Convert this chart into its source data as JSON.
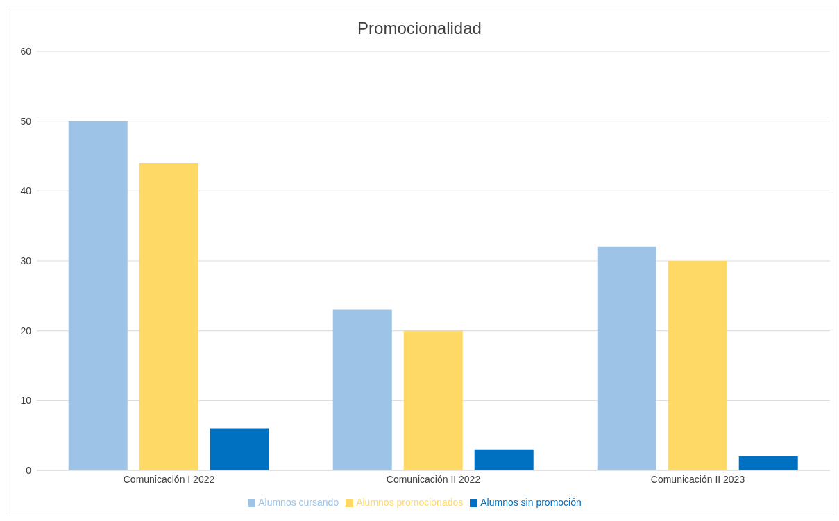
{
  "chart_data": {
    "type": "bar",
    "title": "Promocionalidad",
    "categories": [
      "Comunicación I 2022",
      "Comunicación II 2022",
      "Comunicación II 2023"
    ],
    "series": [
      {
        "name": "Alumnos cursando",
        "color": "#9dc3e6",
        "values": [
          50,
          23,
          32
        ]
      },
      {
        "name": "Alumnos promocionados",
        "color": "#ffd966",
        "values": [
          44,
          20,
          30
        ]
      },
      {
        "name": "Alumnos sin promoción",
        "color": "#0070c0",
        "values": [
          6,
          3,
          2
        ]
      }
    ],
    "ylim": [
      0,
      60
    ],
    "yticks": [
      0,
      10,
      20,
      30,
      40,
      50,
      60
    ],
    "grid": "y",
    "legend": "bottom"
  }
}
